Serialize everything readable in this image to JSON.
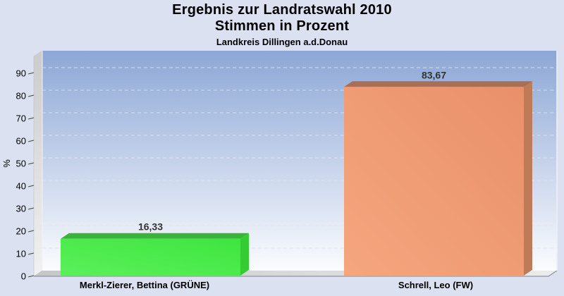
{
  "header": {
    "title_line1": "Ergebnis zur Landratswahl 2010",
    "title_line2": "Stimmen in Prozent",
    "subtitle": "Landkreis Dillingen a.d.Donau"
  },
  "chart_data": {
    "type": "bar",
    "style": "3d-bars",
    "title": "Ergebnis zur Landratswahl 2010",
    "subtitle": "Stimmen in Prozent",
    "region_label": "Landkreis Dillingen a.d.Donau",
    "ylabel": "%",
    "xlabel": "",
    "categories": [
      "Merkl-Zierer, Bettina (GRÜNE)",
      "Schrell, Leo (FW)"
    ],
    "values": [
      16.33,
      83.67
    ],
    "value_labels": [
      "16,33",
      "83,67"
    ],
    "yticks": [
      0,
      10,
      20,
      30,
      40,
      50,
      60,
      70,
      80,
      90
    ],
    "ylim": [
      0,
      97.5
    ],
    "grid": "horizontal-dashed",
    "legend": "none",
    "colors": {
      "page_background": "#dce1f2",
      "plot_gradient_top": "#8ca7d6",
      "plot_gradient_bottom": "#fbfcfe",
      "left_wall": "#d6d6d6",
      "floor_left": "#c6c6c6",
      "floor_right": "#ececec",
      "gridline": "#e3e3e9",
      "axis_text": "#000000",
      "value_label": "#333333",
      "bars": [
        {
          "front": "#3ee53e",
          "front_light": "#5bf05b",
          "top": "#38b438",
          "side": "#33cc33"
        },
        {
          "front": "#e9906a",
          "front_light": "#f5a67e",
          "top": "#a86f55",
          "side": "#bf7a58"
        }
      ]
    }
  }
}
